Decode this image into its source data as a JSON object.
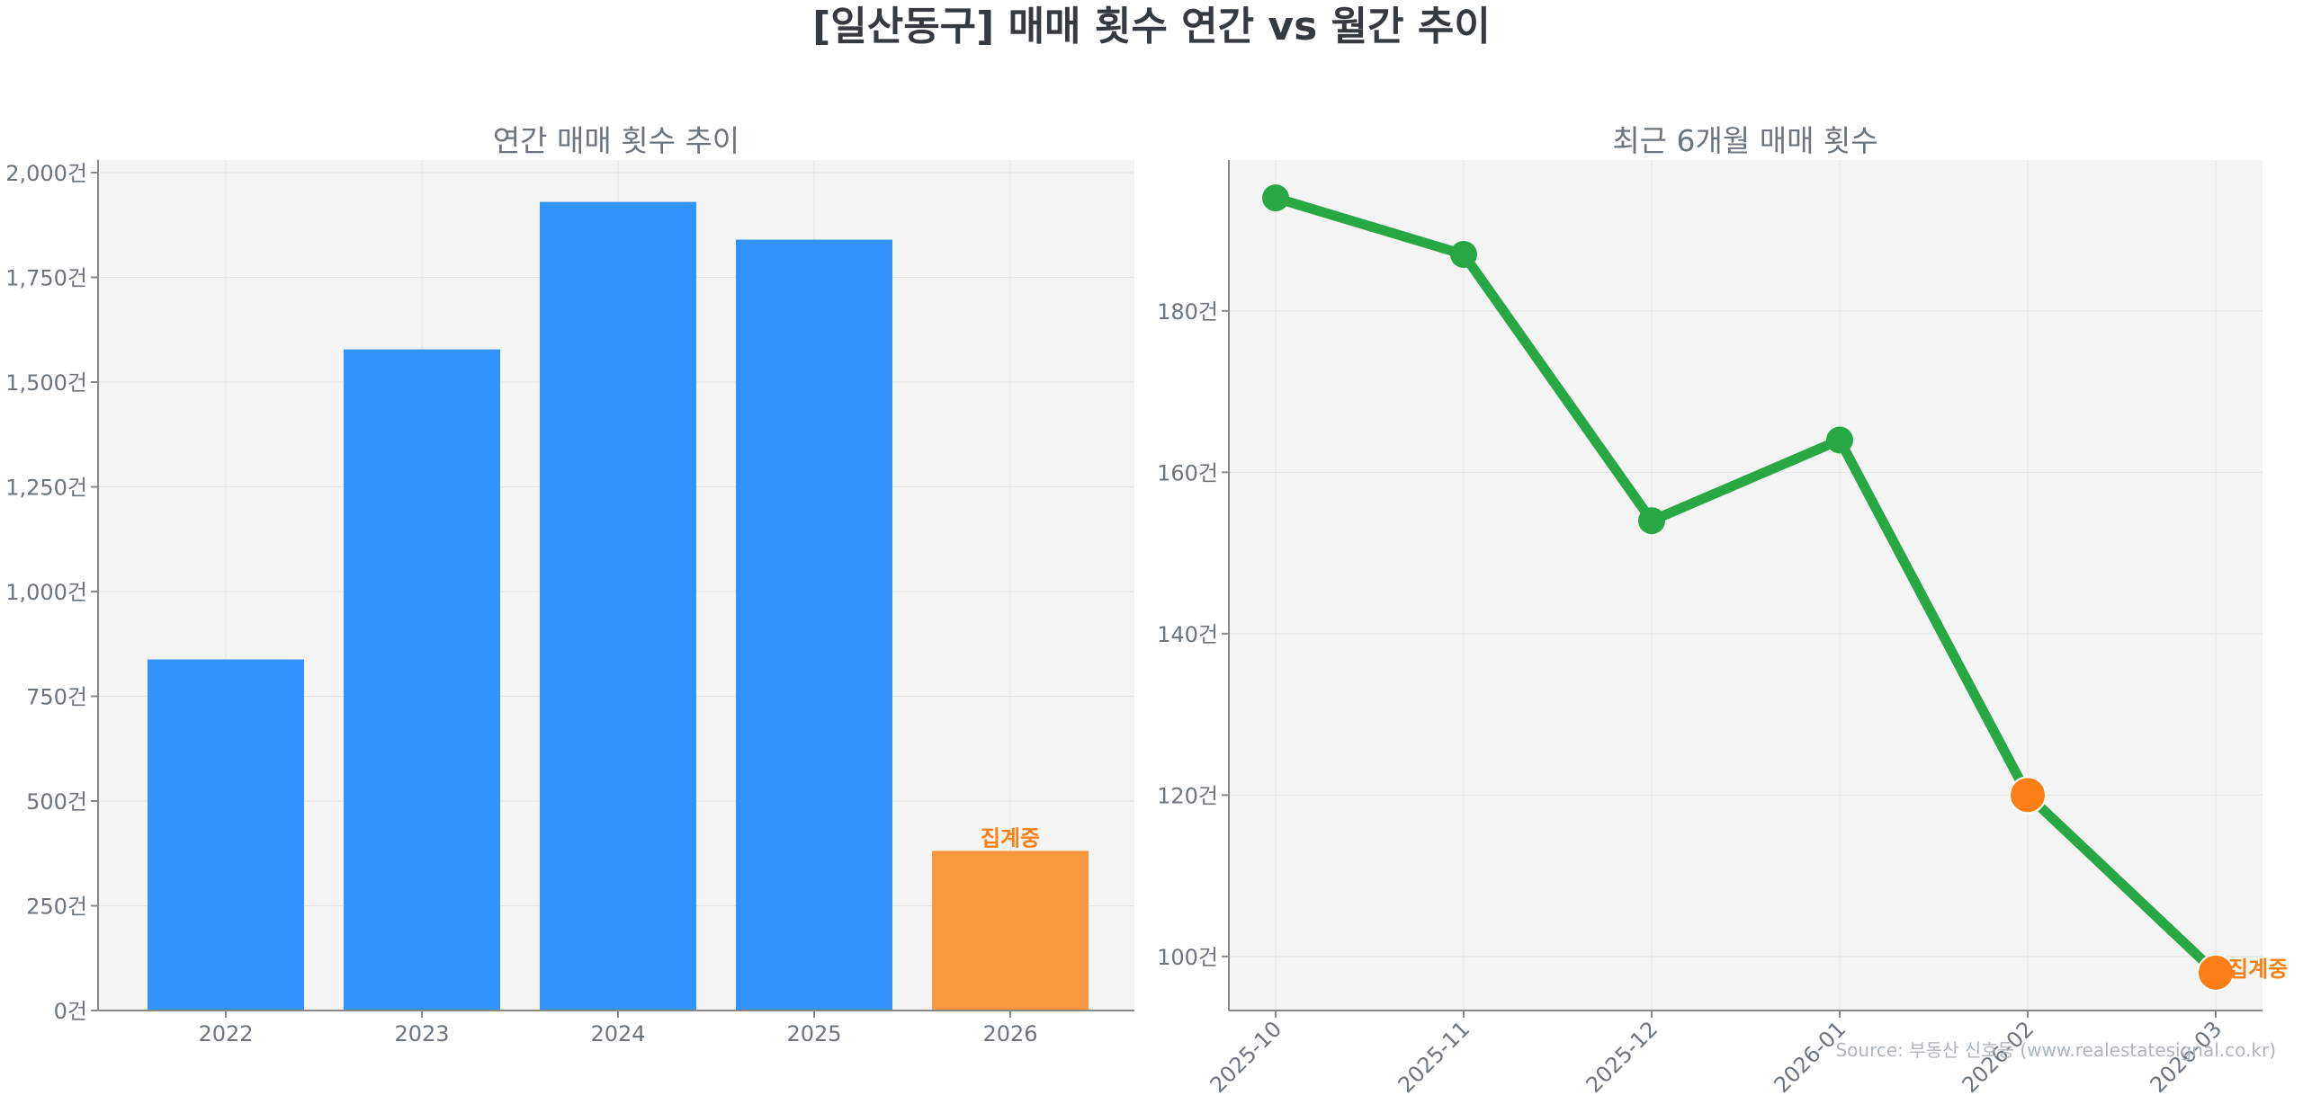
{
  "title": "[일산동구] 매매 횟수 연간 vs 월간 추이",
  "source": "Source: 부동산 신호등 (www.realestatesignal.co.kr)",
  "colors": {
    "bar": "#3193fb",
    "bar_partial": "#f9973f",
    "line": "#28a745",
    "marker_partial": "#fd7e14",
    "annotation": "#fd7e14",
    "panel_bg": "#f4f4f4",
    "grid": "#e2e2e2",
    "axis": "#888888",
    "tick_text": "#6c757d",
    "title_text": "#343a40"
  },
  "chart_data": [
    {
      "type": "bar",
      "title": "연간 매매 횟수 추이",
      "categories": [
        "2022",
        "2023",
        "2024",
        "2025",
        "2026"
      ],
      "values": [
        838,
        1578,
        1930,
        1840,
        381
      ],
      "partial": [
        false,
        false,
        false,
        false,
        true
      ],
      "annotation": {
        "category": "2026",
        "text": "집계중"
      },
      "ylim": [
        0,
        2030
      ],
      "yticks": [
        0,
        250,
        500,
        750,
        1000,
        1250,
        1500,
        1750,
        2000
      ],
      "ytick_labels": [
        "0건",
        "250건",
        "500건",
        "750건",
        "1,000건",
        "1,250건",
        "1,500건",
        "1,750건",
        "2,000건"
      ],
      "grid": true
    },
    {
      "type": "line",
      "title": "최근 6개월 매매 횟수",
      "x": [
        "2025-10",
        "2025-11",
        "2025-12",
        "2026-01",
        "2026-02",
        "2026-03"
      ],
      "values": [
        194,
        187,
        154,
        164,
        120,
        98
      ],
      "partial": [
        false,
        false,
        false,
        false,
        true,
        true
      ],
      "annotation": {
        "x": "2026-03",
        "text": "집계중"
      },
      "ylim": [
        93.3,
        198.7
      ],
      "yticks": [
        100,
        120,
        140,
        160,
        180
      ],
      "ytick_labels": [
        "100건",
        "120건",
        "140건",
        "160건",
        "180건"
      ],
      "grid": true
    }
  ]
}
